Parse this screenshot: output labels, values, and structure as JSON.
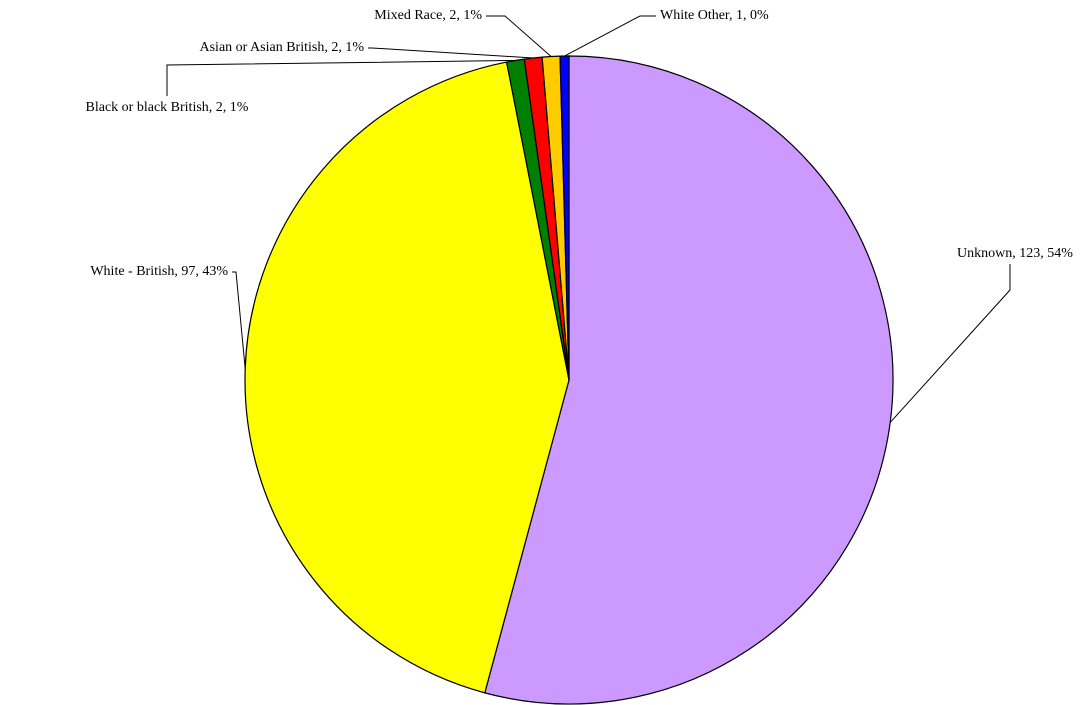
{
  "chart_data": {
    "type": "pie",
    "values": [
      123,
      97,
      2,
      2,
      2,
      1
    ],
    "value_labels": [
      "Unknown, 123, 54%",
      "White - British, 97, 43%",
      "Black or black British, 2, 1%",
      "Asian or Asian British, 2, 1%",
      "Mixed Race, 2, 1%",
      "White Other, 1, 0%"
    ],
    "colors": [
      "#cc99ff",
      "#ffff00",
      "#008000",
      "#ff0000",
      "#ffcc00",
      "#0000ff"
    ]
  }
}
